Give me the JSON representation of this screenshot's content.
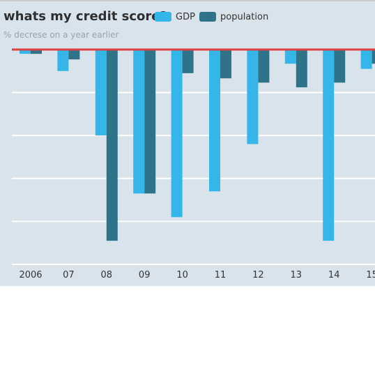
{
  "colors": {
    "gdp": "#35b6e8",
    "population": "#2f738b",
    "baseline": "#e04040",
    "background": "#d8e3eb",
    "grid": "#ffffff"
  },
  "legend": {
    "gdp": "GDP",
    "population": "population"
  },
  "chart_data": {
    "type": "bar",
    "title": "whats my credit score?",
    "subtitle": "% decrese on a year earlier",
    "categories": [
      "2006",
      "07",
      "08",
      "09",
      "10",
      "11",
      "12",
      "13",
      "14",
      "15"
    ],
    "series": [
      {
        "name": "GDP",
        "values": [
          -0.1,
          -0.5,
          -2.0,
          -3.35,
          -3.9,
          -3.3,
          -2.2,
          -0.33,
          -4.45,
          -0.45
        ]
      },
      {
        "name": "population",
        "values": [
          -0.1,
          -0.23,
          -4.45,
          -3.35,
          -0.55,
          -0.67,
          -0.77,
          -0.88,
          -0.77,
          -0.33
        ]
      }
    ],
    "ylim": [
      -5,
      0
    ],
    "grid": true,
    "legend_position": "top"
  }
}
